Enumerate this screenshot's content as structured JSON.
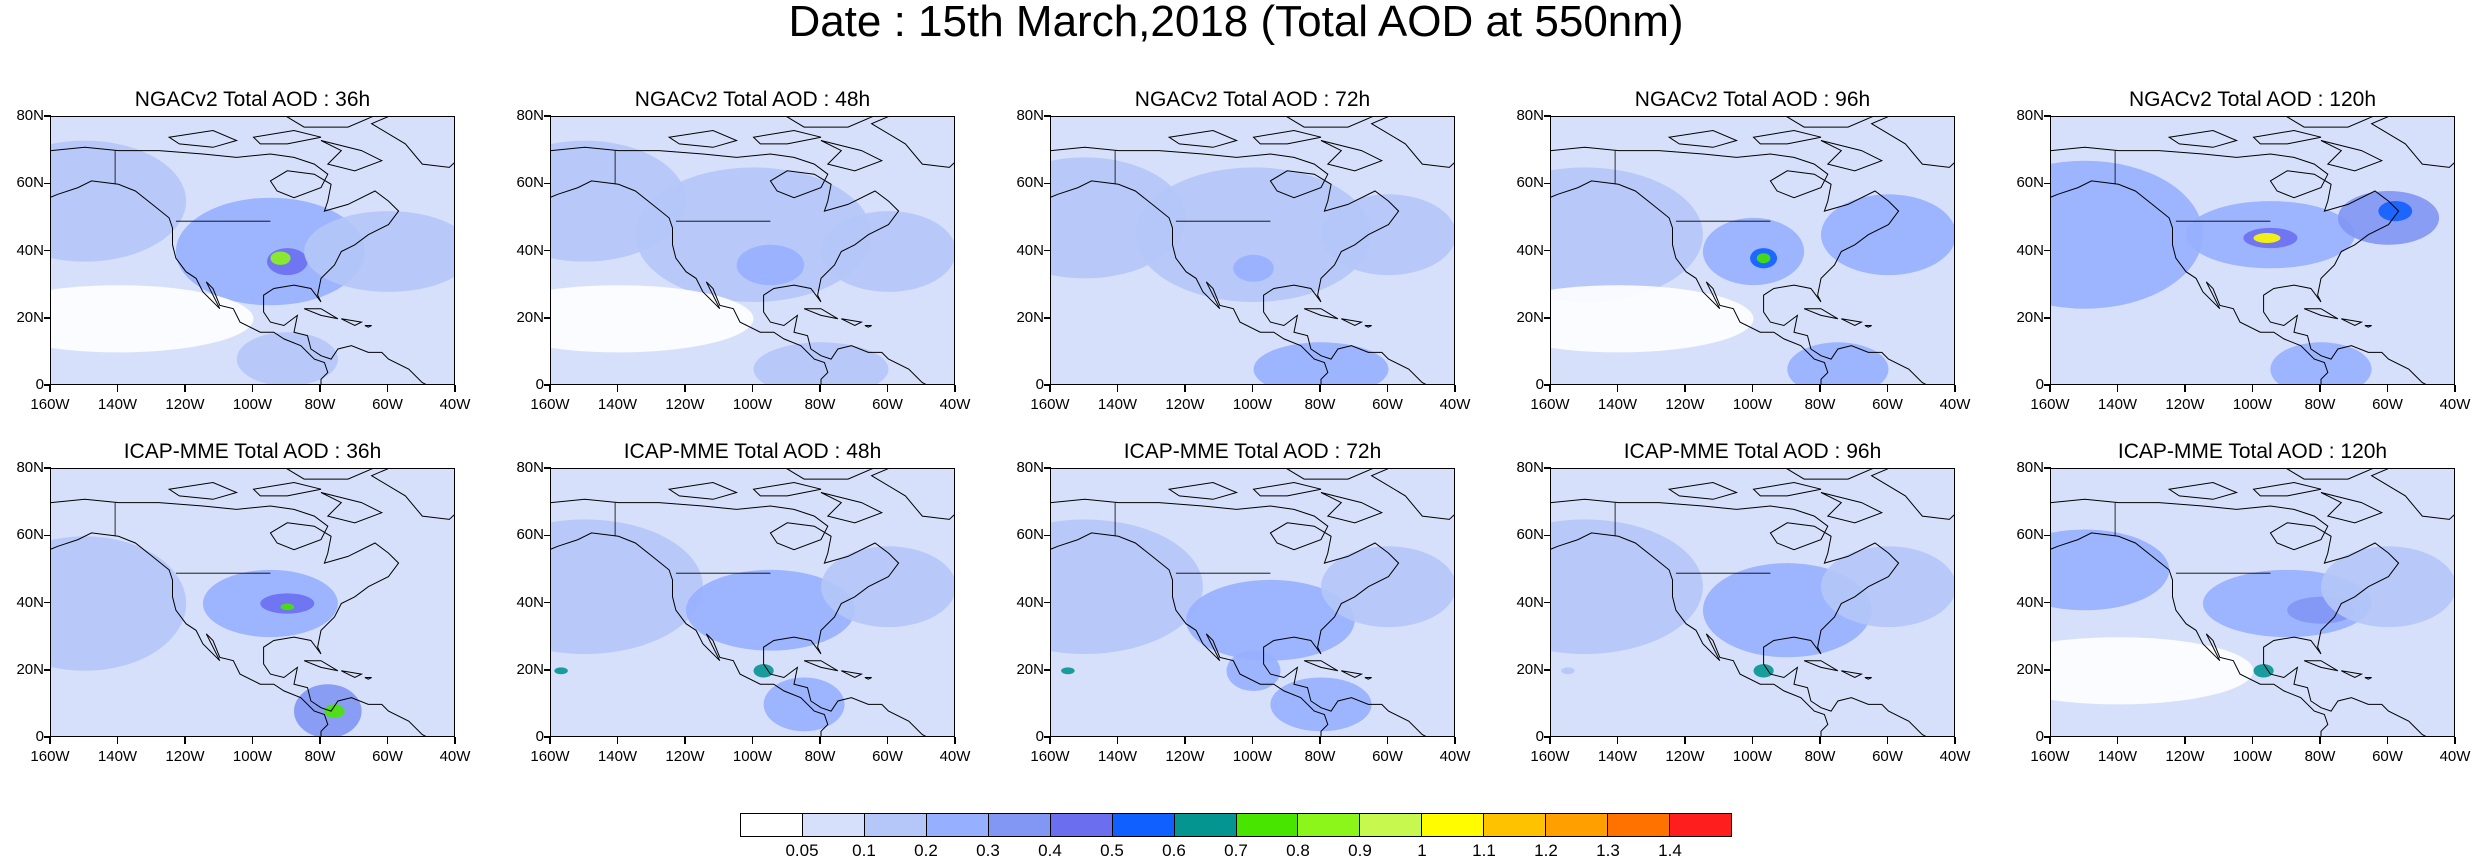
{
  "title": "Date : 15th March,2018 (Total AOD at 550nm)",
  "panels": [
    {
      "title": "NGACv2 Total AOD : 36h"
    },
    {
      "title": "NGACv2 Total AOD : 48h"
    },
    {
      "title": "NGACv2 Total AOD : 72h"
    },
    {
      "title": "NGACv2 Total AOD : 96h"
    },
    {
      "title": "NGACv2 Total AOD : 120h"
    },
    {
      "title": "ICAP-MME Total AOD : 36h"
    },
    {
      "title": "ICAP-MME Total AOD : 48h"
    },
    {
      "title": "ICAP-MME Total AOD : 72h"
    },
    {
      "title": "ICAP-MME Total AOD : 96h"
    },
    {
      "title": "ICAP-MME Total AOD : 120h"
    }
  ],
  "lat_labels": [
    "80N",
    "60N",
    "40N",
    "20N",
    "0"
  ],
  "lon_labels": [
    "160W",
    "140W",
    "120W",
    "100W",
    "80W",
    "60W",
    "40W"
  ],
  "colorbar": {
    "colors": [
      "#ffffff",
      "#d7e0fb",
      "#b5c6f8",
      "#97afff",
      "#8296f4",
      "#6c6ef0",
      "#0f60ff",
      "#049590",
      "#48e500",
      "#8cf51a",
      "#c6f84e",
      "#fffc00",
      "#ffc200",
      "#ffa000",
      "#ff7200",
      "#ff1e1e"
    ],
    "labels": [
      "0.05",
      "0.1",
      "0.2",
      "0.3",
      "0.4",
      "0.5",
      "0.6",
      "0.7",
      "0.8",
      "0.9",
      "1",
      "1.1",
      "1.2",
      "1.3",
      "1.4"
    ]
  }
}
